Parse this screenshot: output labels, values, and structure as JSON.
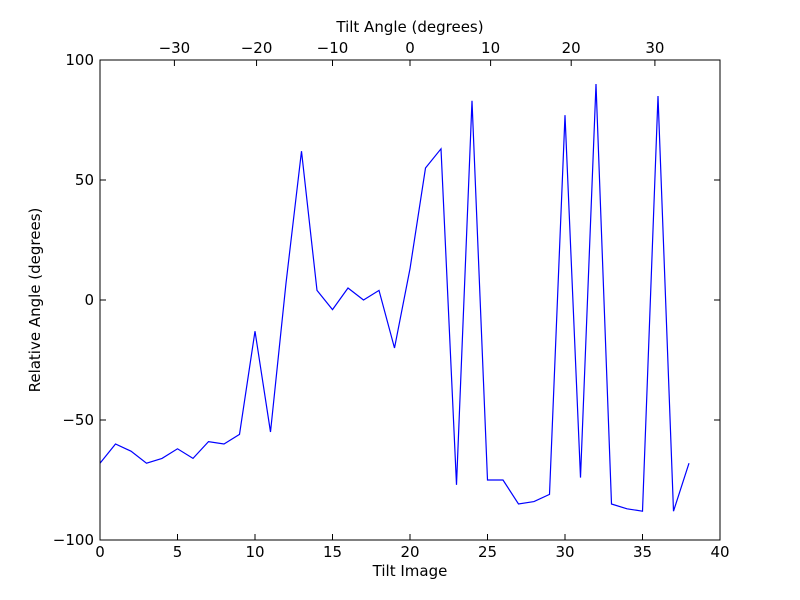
{
  "chart_data": {
    "type": "line",
    "xlabel": "Tilt Image",
    "ylabel": "Relative Angle (degrees)",
    "top_xlabel": "Tilt Angle (degrees)",
    "xlim": [
      0,
      40
    ],
    "ylim": [
      -100,
      100
    ],
    "xticks": [
      0,
      5,
      10,
      15,
      20,
      25,
      30,
      35,
      40
    ],
    "xtick_labels": [
      "0",
      "5",
      "10",
      "15",
      "20",
      "25",
      "30",
      "35",
      "40"
    ],
    "yticks": [
      -100,
      -50,
      0,
      50,
      100
    ],
    "ytick_labels": [
      "−100",
      "−50",
      "0",
      "50",
      "100"
    ],
    "top_ticks": [
      {
        "x": 4.8,
        "label": "−30"
      },
      {
        "x": 10.1,
        "label": "−20"
      },
      {
        "x": 15.0,
        "label": "−10"
      },
      {
        "x": 20.0,
        "label": "0"
      },
      {
        "x": 25.2,
        "label": "10"
      },
      {
        "x": 30.4,
        "label": "20"
      },
      {
        "x": 35.8,
        "label": "30"
      }
    ],
    "grid": false,
    "color": "#0000ff",
    "series": [
      {
        "x": [
          0,
          1,
          2,
          3,
          4,
          5,
          6,
          7,
          8,
          9,
          10,
          11,
          12,
          13,
          14,
          15,
          16,
          17,
          18,
          19,
          20,
          21,
          22,
          23,
          24,
          25,
          26,
          27,
          28,
          29,
          30,
          31,
          32,
          33,
          34,
          35,
          36,
          37,
          38
        ],
        "values": [
          -68,
          -60,
          -63,
          -68,
          -66,
          -62,
          -66,
          -59,
          -60,
          -56,
          -13,
          -55,
          7,
          62,
          4,
          -4,
          5,
          0,
          4,
          -20,
          13,
          55,
          63,
          -77,
          83,
          -75,
          -75,
          -85,
          -84,
          -81,
          77,
          -74,
          90,
          -85,
          -87,
          -88,
          85,
          -88,
          -68
        ]
      }
    ]
  }
}
